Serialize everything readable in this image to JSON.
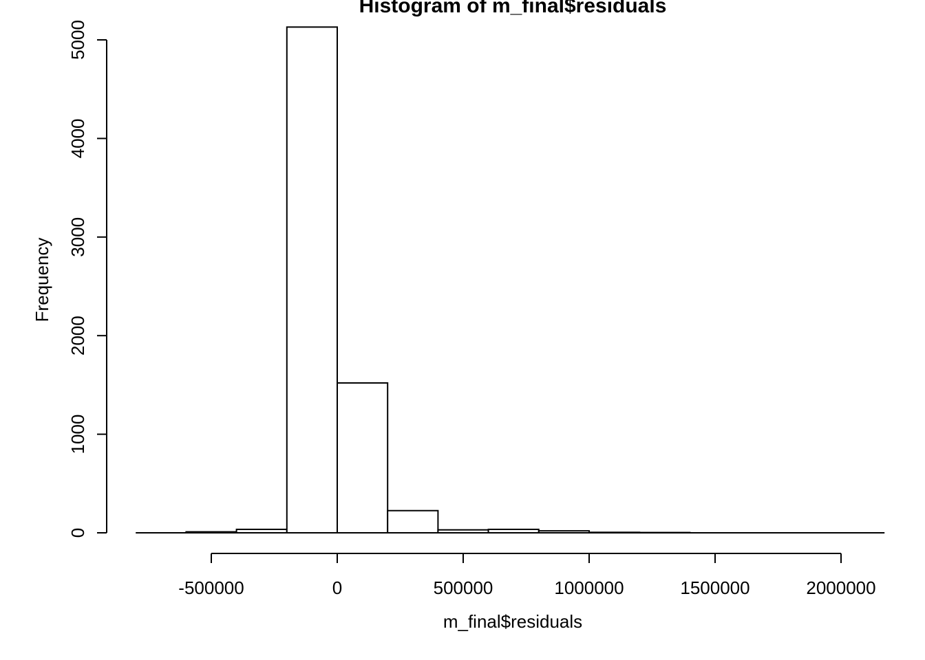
{
  "chart_data": {
    "type": "bar",
    "title": "Histogram of m_final$residuals",
    "xlabel": "m_final$residuals",
    "ylabel": "Frequency",
    "bins": [
      {
        "from": -800000,
        "to": -600000,
        "count": 0
      },
      {
        "from": -600000,
        "to": -400000,
        "count": 10
      },
      {
        "from": -400000,
        "to": -200000,
        "count": 35
      },
      {
        "from": -200000,
        "to": 0,
        "count": 5130
      },
      {
        "from": 0,
        "to": 200000,
        "count": 1520
      },
      {
        "from": 200000,
        "to": 400000,
        "count": 225
      },
      {
        "from": 400000,
        "to": 600000,
        "count": 30
      },
      {
        "from": 600000,
        "to": 800000,
        "count": 35
      },
      {
        "from": 800000,
        "to": 1000000,
        "count": 20
      },
      {
        "from": 1000000,
        "to": 1200000,
        "count": 5
      },
      {
        "from": 1200000,
        "to": 1400000,
        "count": 3
      },
      {
        "from": 1400000,
        "to": 1600000,
        "count": 0
      },
      {
        "from": 1600000,
        "to": 1800000,
        "count": 0
      },
      {
        "from": 1800000,
        "to": 2000000,
        "count": 0
      },
      {
        "from": 2000000,
        "to": 2200000,
        "count": 0
      }
    ],
    "xlim": [
      -800000,
      2200000
    ],
    "ylim": [
      0,
      5150
    ],
    "x_ticks": [
      -500000,
      0,
      500000,
      1000000,
      1500000,
      2000000
    ],
    "x_tick_labels": [
      "-500000",
      "0",
      "500000",
      "1000000",
      "1500000",
      "2000000"
    ],
    "y_ticks": [
      0,
      1000,
      2000,
      3000,
      4000,
      5000
    ],
    "y_tick_labels": [
      "0",
      "1000",
      "2000",
      "3000",
      "4000",
      "5000"
    ],
    "grid": false,
    "legend": "none"
  }
}
